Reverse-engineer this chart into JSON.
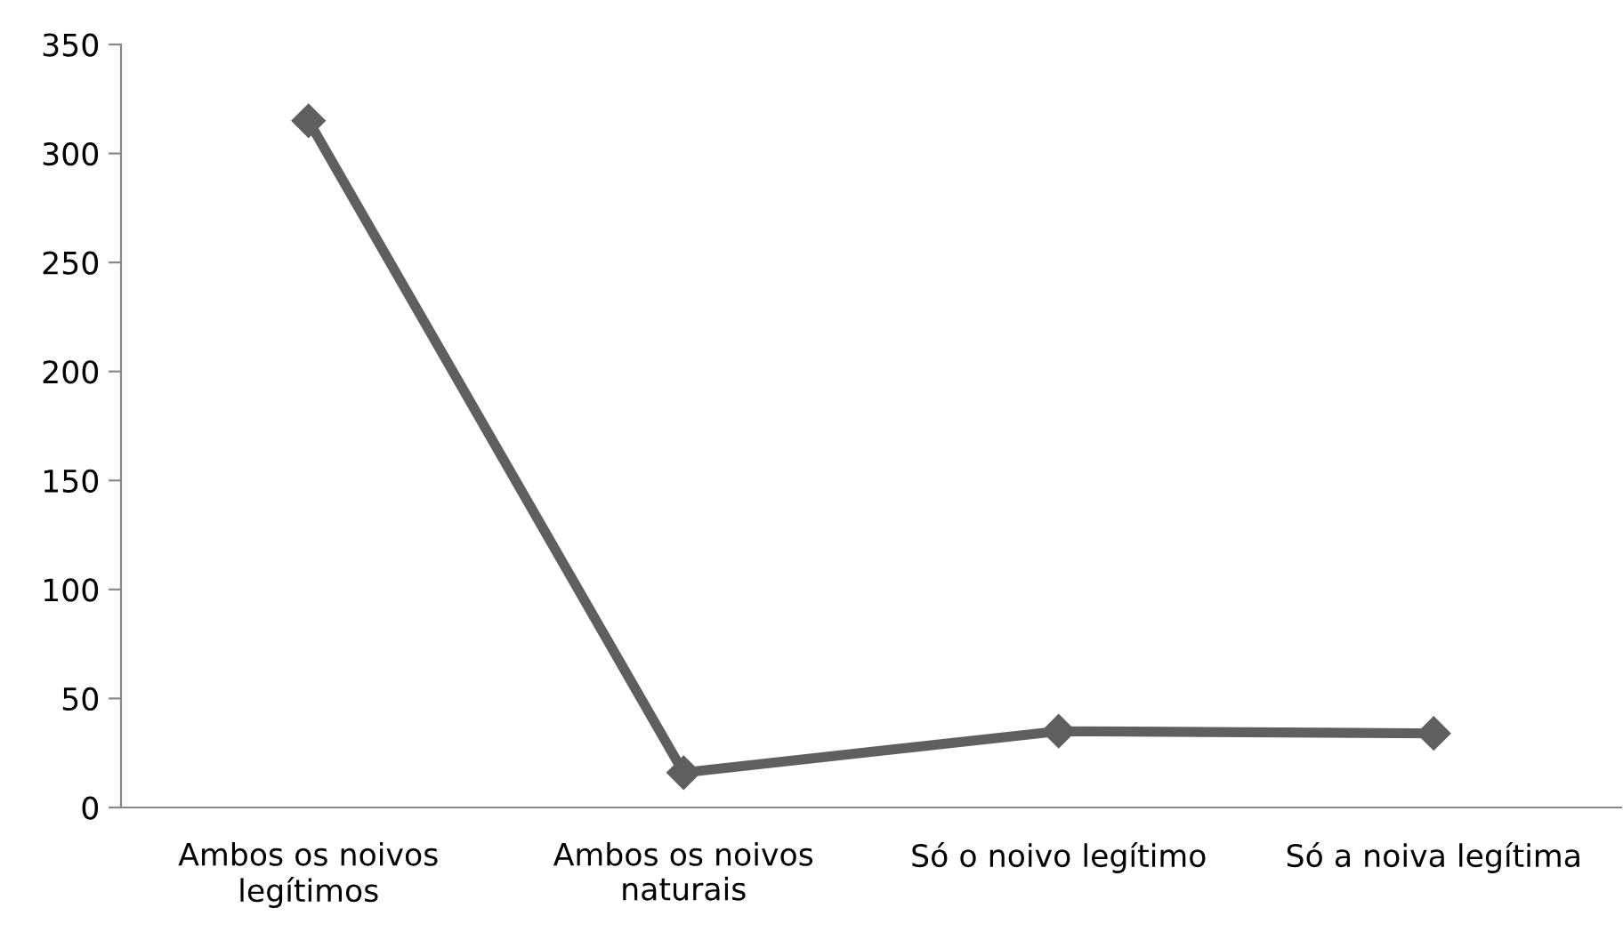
{
  "chart_data": {
    "type": "line",
    "categories": [
      "Ambos os noivos legítimos",
      "Ambos os noivos naturais",
      "Só o noivo legítimo",
      "Só a noiva legítima"
    ],
    "series": [
      {
        "color": "#5f5f5f",
        "values": [
          315,
          16,
          35,
          34
        ]
      }
    ],
    "ylim": [
      0,
      350
    ],
    "yticks": [
      0,
      50,
      100,
      150,
      200,
      250,
      300,
      350
    ],
    "marker": "diamond",
    "line_style": "solid",
    "grid": false,
    "legend": false
  }
}
